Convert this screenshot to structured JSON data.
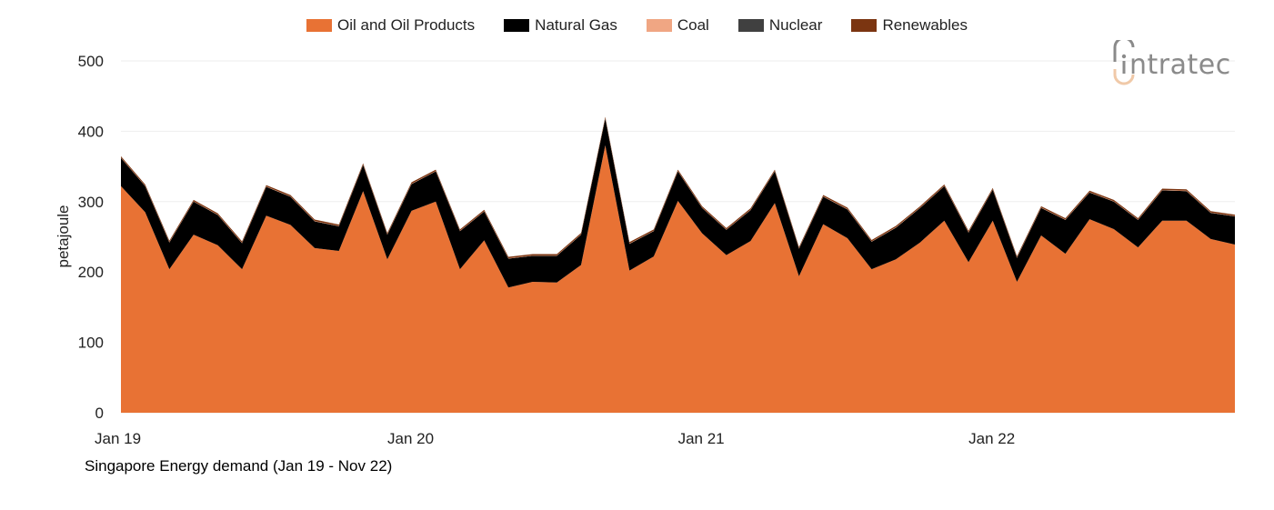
{
  "chart_data": {
    "type": "area",
    "stacked": true,
    "caption": "Singapore Energy demand (Jan 19 - Nov 22)",
    "ylabel": "petajoule",
    "xlabel": "",
    "ylim": [
      0,
      500
    ],
    "yticks": [
      0,
      100,
      200,
      300,
      400,
      500
    ],
    "xticks": [
      {
        "x": "2019-01",
        "label": "Jan 19"
      },
      {
        "x": "2020-01",
        "label": "Jan 20"
      },
      {
        "x": "2021-01",
        "label": "Jan 21"
      },
      {
        "x": "2022-01",
        "label": "Jan 22"
      }
    ],
    "grid": "horizontal",
    "legend_position": "top",
    "x": [
      "2019-01",
      "2019-02",
      "2019-03",
      "2019-04",
      "2019-05",
      "2019-06",
      "2019-07",
      "2019-08",
      "2019-09",
      "2019-10",
      "2019-11",
      "2019-12",
      "2020-01",
      "2020-02",
      "2020-03",
      "2020-04",
      "2020-05",
      "2020-06",
      "2020-07",
      "2020-08",
      "2020-09",
      "2020-10",
      "2020-11",
      "2020-12",
      "2021-01",
      "2021-02",
      "2021-03",
      "2021-04",
      "2021-05",
      "2021-06",
      "2021-07",
      "2021-08",
      "2021-09",
      "2021-10",
      "2021-11",
      "2021-12",
      "2022-01",
      "2022-02",
      "2022-03",
      "2022-04",
      "2022-05",
      "2022-06",
      "2022-07",
      "2022-08",
      "2022-09",
      "2022-10",
      "2022-11"
    ],
    "series": [
      {
        "name": "Oil and Oil Products",
        "color": "#E87234",
        "values": [
          322,
          285,
          204,
          253,
          238,
          204,
          280,
          267,
          234,
          230,
          315,
          218,
          287,
          300,
          204,
          245,
          178,
          186,
          185,
          210,
          380,
          202,
          222,
          301,
          255,
          224,
          244,
          298,
          194,
          268,
          248,
          204,
          218,
          242,
          273,
          214,
          273,
          186,
          252,
          226,
          275,
          261,
          235,
          273,
          273,
          247,
          239
        ]
      },
      {
        "name": "Natural Gas",
        "color": "#000000",
        "values": [
          40,
          37,
          38,
          47,
          43,
          37,
          41,
          40,
          38,
          35,
          37,
          35,
          38,
          43,
          54,
          41,
          41,
          37,
          38,
          43,
          38,
          38,
          36,
          42,
          36,
          36,
          44,
          45,
          39,
          39,
          41,
          39,
          45,
          49,
          49,
          42,
          44,
          34,
          39,
          48,
          38,
          39,
          39,
          43,
          42,
          37,
          40
        ]
      },
      {
        "name": "Coal",
        "color": "#F0A683",
        "values": [
          0.5,
          0.5,
          0.5,
          0.5,
          0.5,
          0.5,
          0.5,
          0.5,
          0.5,
          0.5,
          0.5,
          0.5,
          0.5,
          0.5,
          0.5,
          0.5,
          0.5,
          0.5,
          0.5,
          0.5,
          0.5,
          0.5,
          0.5,
          0.5,
          0.5,
          0.5,
          0.5,
          0.5,
          0.5,
          0.5,
          0.5,
          0.5,
          0.5,
          0.5,
          0.5,
          0.5,
          0.5,
          0.5,
          0.5,
          0.5,
          0.5,
          0.5,
          0.5,
          0.5,
          0.5,
          0.5,
          0.5
        ]
      },
      {
        "name": "Nuclear",
        "color": "#404040",
        "values": [
          0,
          0,
          0,
          0,
          0,
          0,
          0,
          0,
          0,
          0,
          0,
          0,
          0,
          0,
          0,
          0,
          0,
          0,
          0,
          0,
          0,
          0,
          0,
          0,
          0,
          0,
          0,
          0,
          0,
          0,
          0,
          0,
          0,
          0,
          0,
          0,
          0,
          0,
          0,
          0,
          0,
          0,
          0,
          0,
          0,
          0,
          0
        ]
      },
      {
        "name": "Renewables",
        "color": "#7B3511",
        "values": [
          2,
          2,
          2,
          2,
          2,
          2,
          2,
          2,
          2,
          2,
          2,
          2,
          2,
          2,
          2,
          2,
          2,
          2,
          2,
          2,
          2,
          2,
          2,
          2,
          2,
          2,
          2,
          2,
          2,
          2,
          2,
          2,
          2,
          2,
          2,
          2,
          2,
          2,
          2,
          2,
          2,
          2,
          2,
          2,
          2,
          2,
          2
        ]
      }
    ]
  },
  "logo": {
    "text": "intratec",
    "color": "#8a8a8a",
    "accent": "#F0C9A8"
  }
}
